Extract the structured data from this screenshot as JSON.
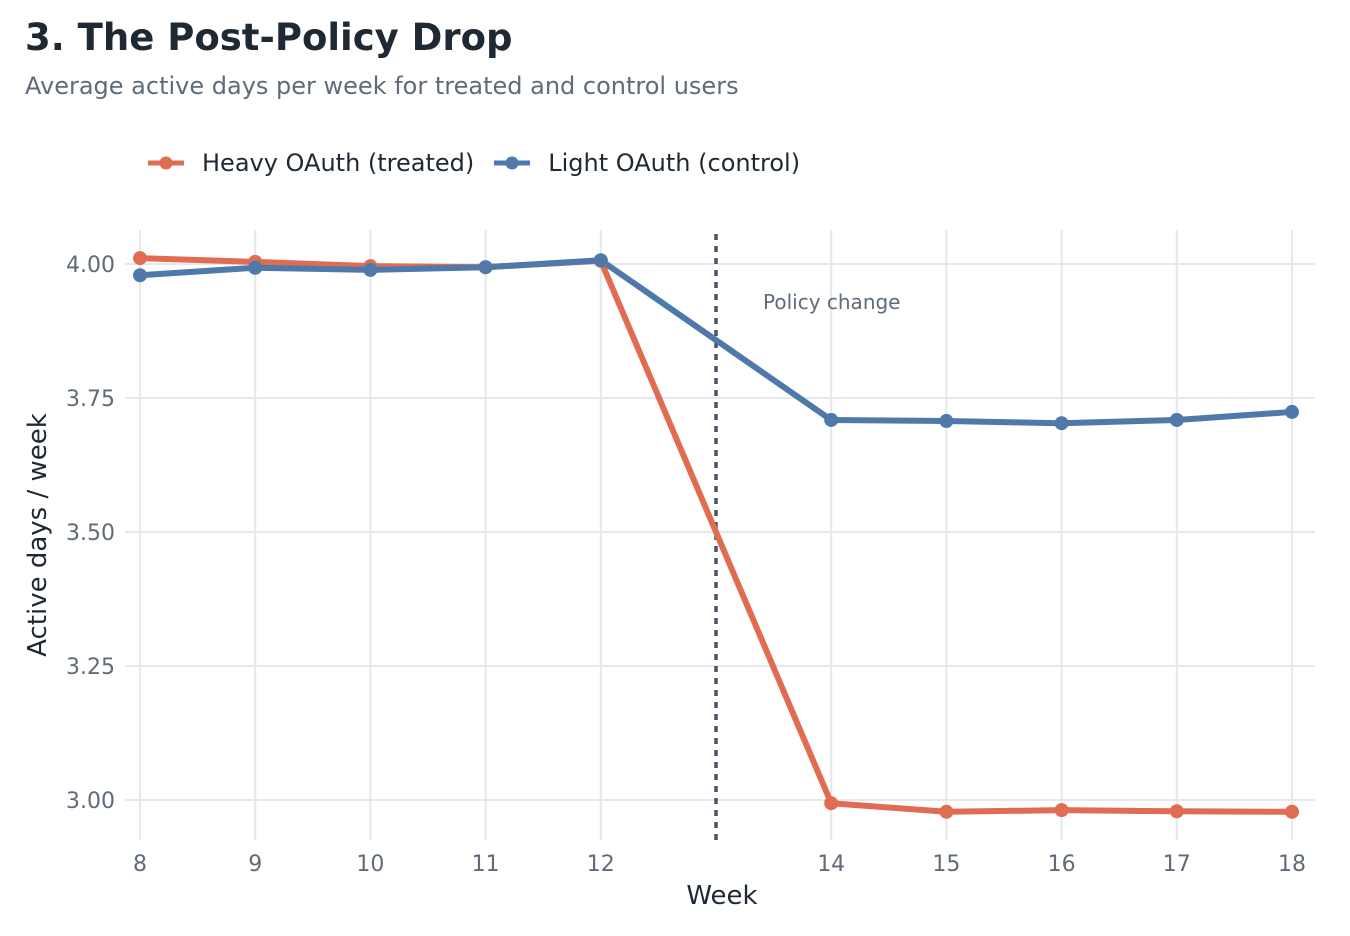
{
  "chart_data": {
    "type": "line",
    "title": "3. The Post-Policy Drop",
    "subtitle": "Average active days per week for treated and control users",
    "xlabel": "Week",
    "ylabel": "Active days / week",
    "x_ticks": [
      8,
      9,
      10,
      11,
      12,
      14,
      15,
      16,
      17,
      18
    ],
    "y_ticks": [
      3.0,
      3.25,
      3.5,
      3.75,
      4.0
    ],
    "y_tick_labels": [
      "3.00",
      "3.25",
      "3.50",
      "3.75",
      "4.00"
    ],
    "xlim": [
      8,
      18
    ],
    "ylim": [
      2.93,
      4.06
    ],
    "grid": true,
    "legend_position": "top-left",
    "series": [
      {
        "name": "Heavy OAuth (treated)",
        "color": "#e06c52",
        "x": [
          8,
          9,
          10,
          11,
          12,
          14,
          15,
          16,
          17,
          18
        ],
        "values": [
          4.011,
          4.004,
          3.996,
          3.994,
          4.006,
          2.994,
          2.978,
          2.981,
          2.979,
          2.978
        ]
      },
      {
        "name": "Light OAuth (control)",
        "color": "#4e79aa",
        "x": [
          8,
          9,
          10,
          11,
          12,
          14,
          15,
          16,
          17,
          18
        ],
        "values": [
          3.979,
          3.993,
          3.989,
          3.994,
          4.007,
          3.709,
          3.707,
          3.703,
          3.709,
          3.724
        ]
      }
    ],
    "annotations": [
      {
        "type": "vline",
        "x": 13,
        "style": "dotted",
        "color": "#4b5563",
        "label": "Policy change"
      }
    ]
  }
}
